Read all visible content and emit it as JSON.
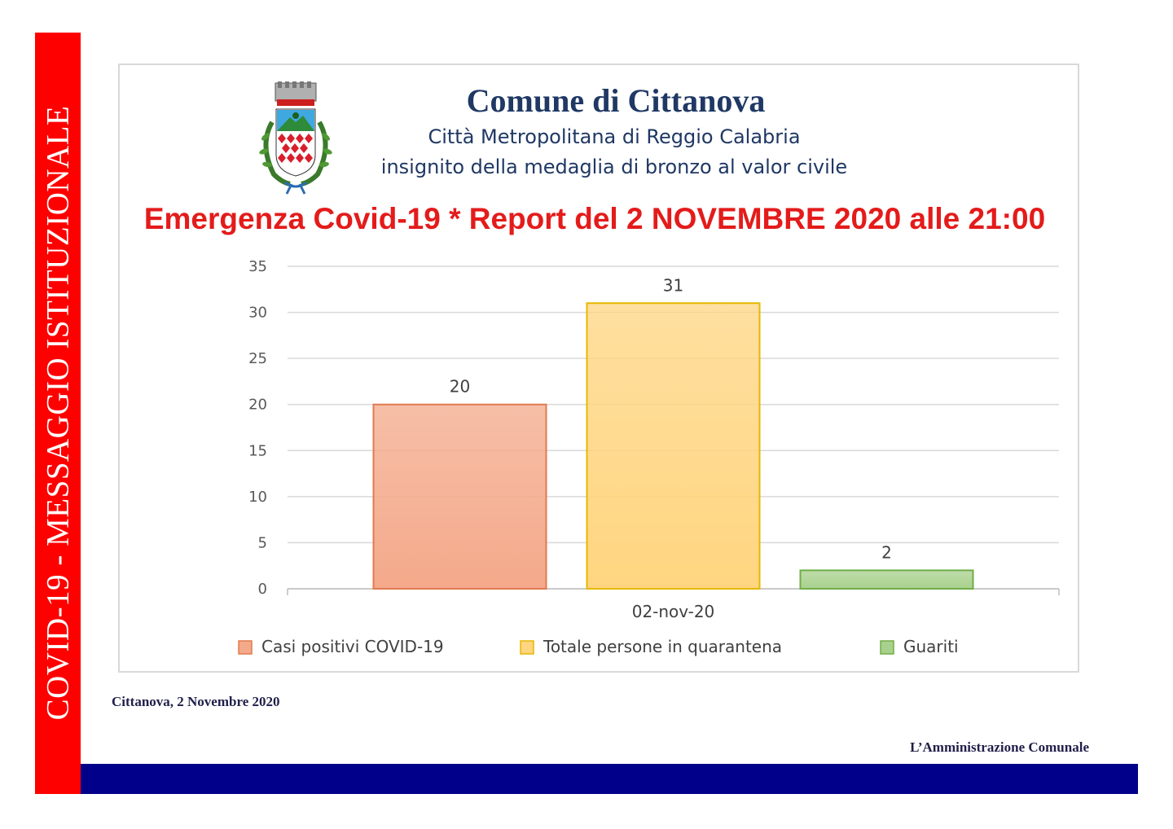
{
  "sidebar": {
    "label": "COVID-19 - MESSAGGIO ISTITUZIONALE",
    "color": "#ff0000"
  },
  "bottom_bar": {
    "color": "#00008b"
  },
  "header": {
    "title": "Comune di Cittanova",
    "subtitle1": "Città Metropolitana di Reggio Calabria",
    "subtitle2": "insignito della medaglia di bronzo al valor civile"
  },
  "report": {
    "title": "Emergenza Covid-19 * Report del 2 NOVEMBRE 2020 alle 21:00"
  },
  "chart_data": {
    "type": "bar",
    "categories": [
      "02-nov-20"
    ],
    "series": [
      {
        "name": "Casi positivi COVID-19",
        "values": [
          20
        ],
        "color": "#f4a98a",
        "border": "#e07a4f"
      },
      {
        "name": "Totale persone in quarantena",
        "values": [
          31
        ],
        "color": "#ffd580",
        "border": "#e6b800"
      },
      {
        "name": "Guariti",
        "values": [
          2
        ],
        "color": "#a9d18e",
        "border": "#70ad47"
      }
    ],
    "ylim": [
      0,
      35
    ],
    "yticks": [
      0,
      5,
      10,
      15,
      20,
      25,
      30,
      35
    ],
    "grid": true,
    "legend": "bottom",
    "data_labels": true
  },
  "footer": {
    "date": "Cittanova, 2 Novembre 2020",
    "signature": "L’Amministrazione Comunale"
  }
}
